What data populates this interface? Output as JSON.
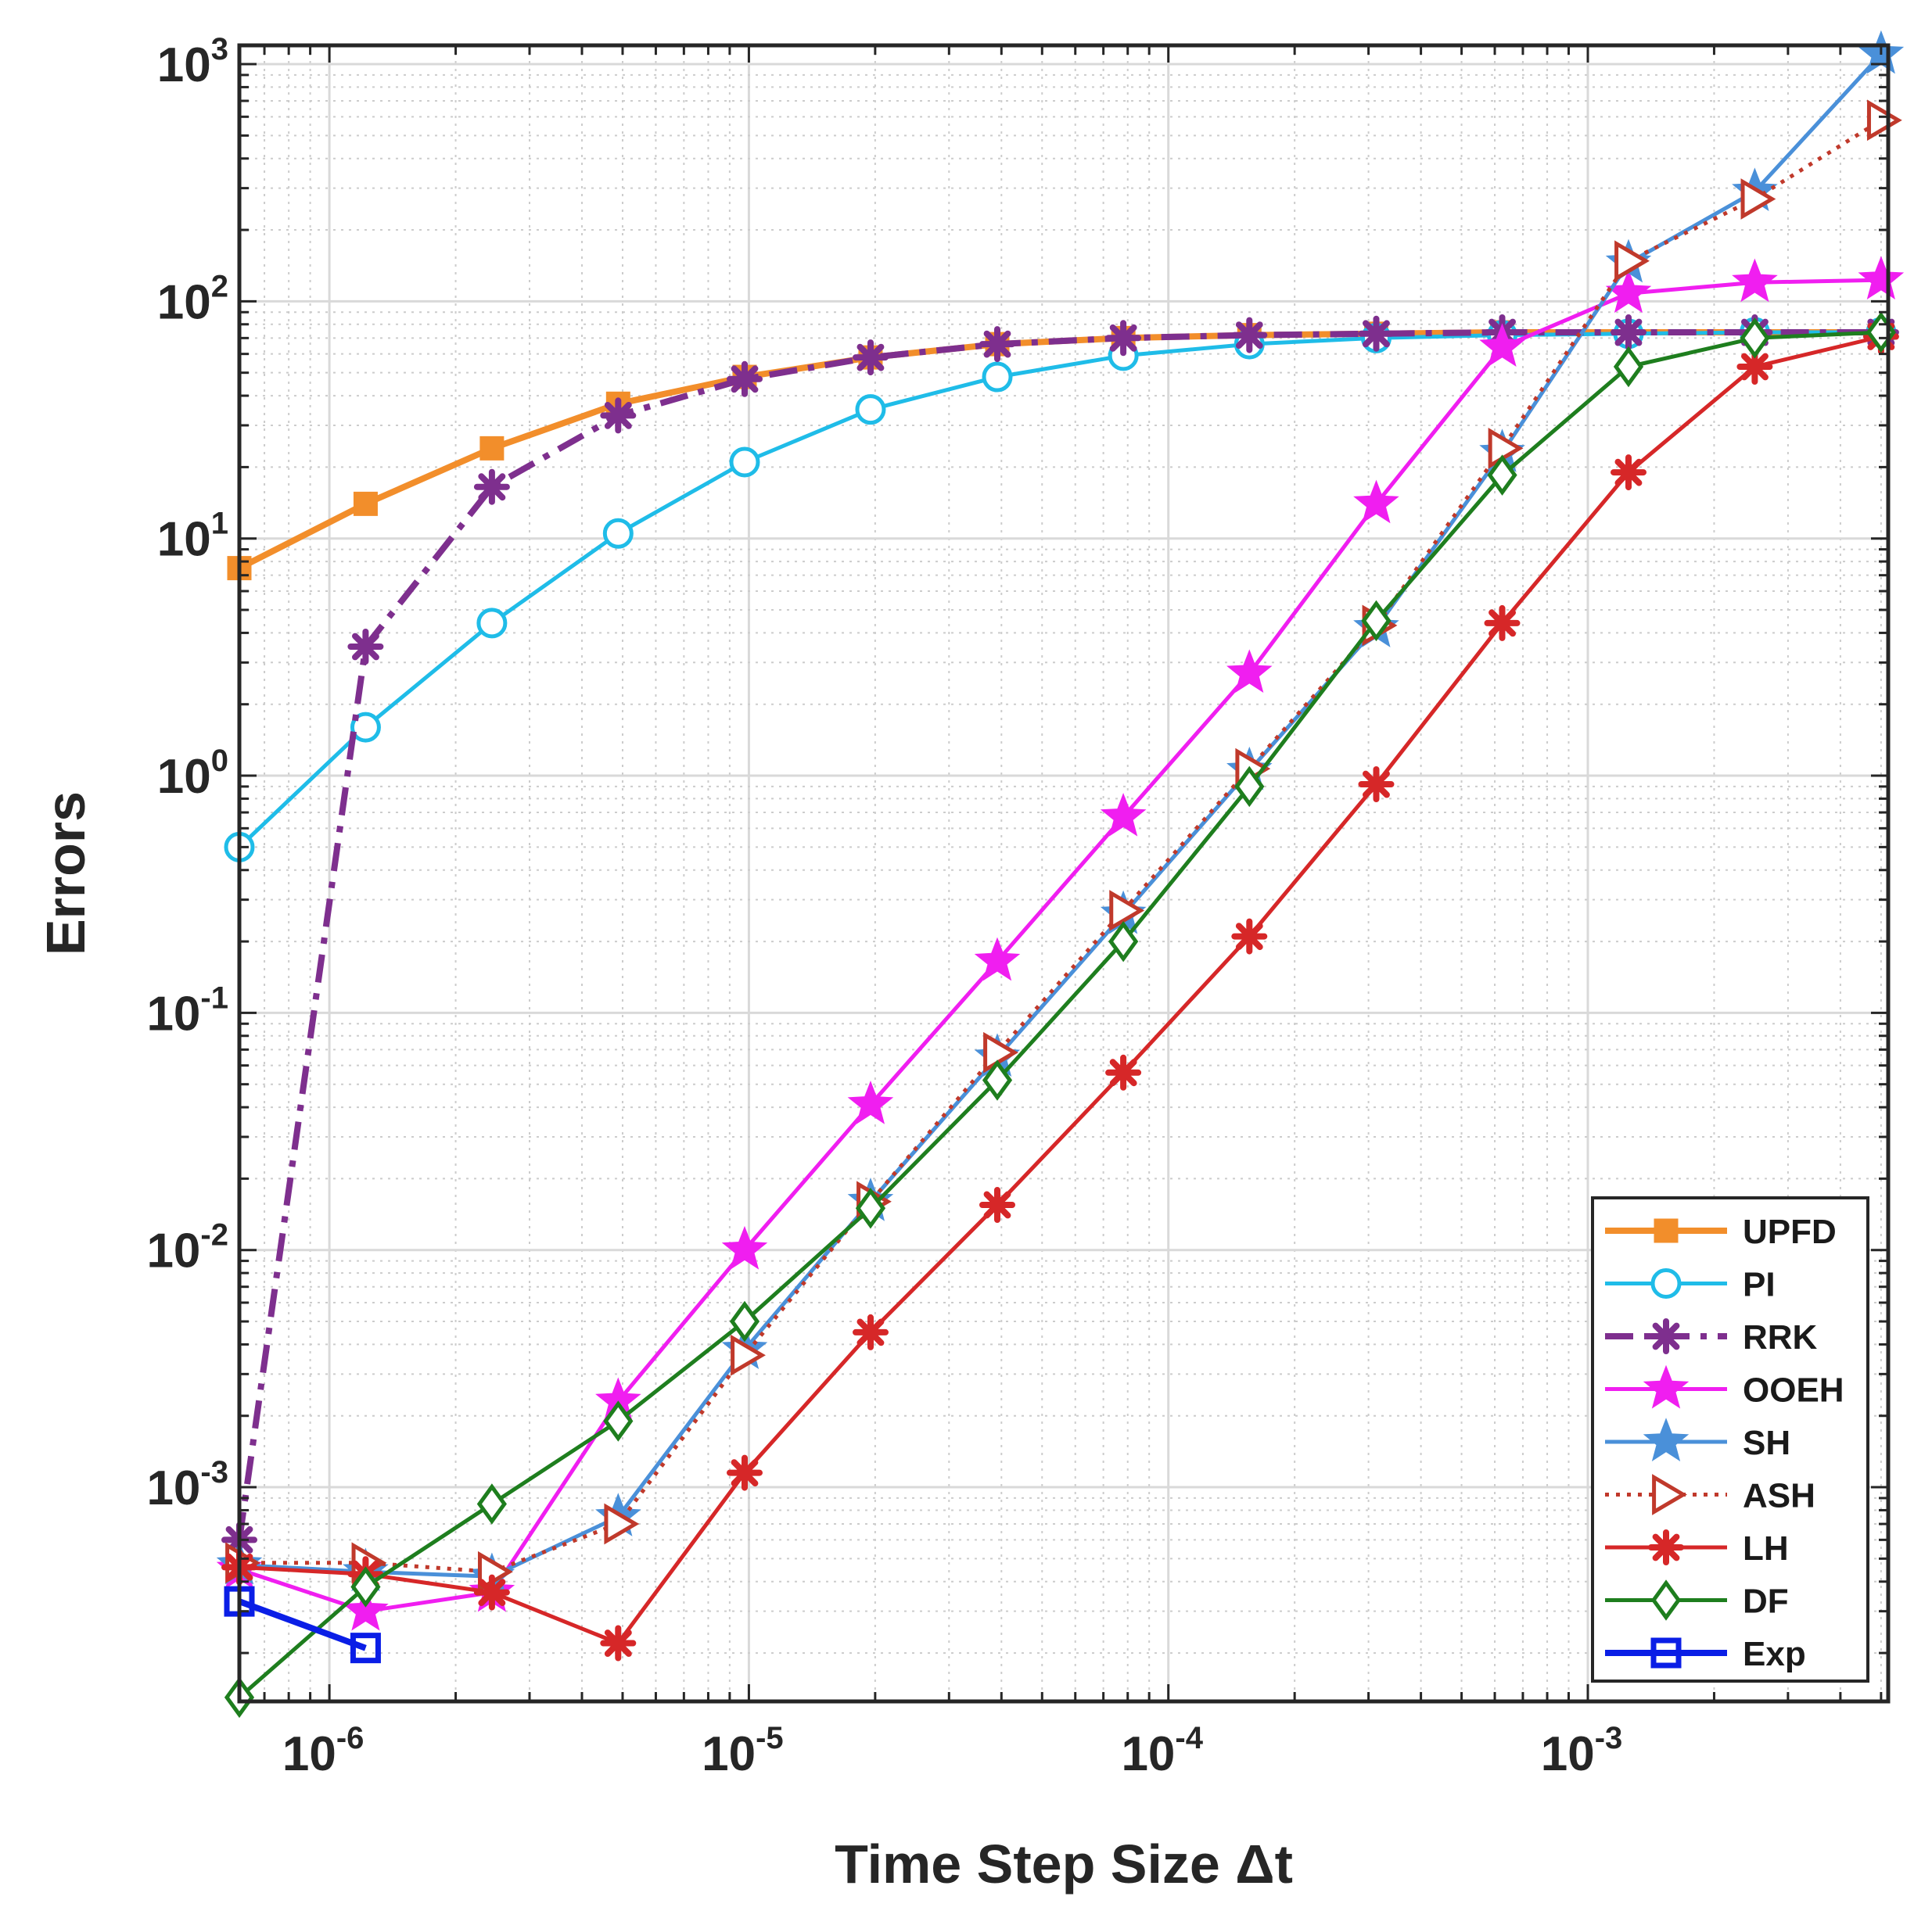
{
  "chart_data": {
    "type": "line",
    "xlabel": "Time Step Size Δt",
    "ylabel": "Errors",
    "xscale": "log",
    "yscale": "log",
    "xlim": [
      6.1e-07,
      0.0052
    ],
    "ylim": [
      0.000125,
      1200
    ],
    "grid": true,
    "minor_grid": true,
    "legend_position": "bottom-right",
    "x_ticks": [
      {
        "value": 1e-06,
        "base": "10",
        "exp": "-6"
      },
      {
        "value": 1e-05,
        "base": "10",
        "exp": "-5"
      },
      {
        "value": 0.0001,
        "base": "10",
        "exp": "-4"
      },
      {
        "value": 0.001,
        "base": "10",
        "exp": "-3"
      }
    ],
    "y_ticks": [
      {
        "value": 0.001,
        "base": "10",
        "exp": "-3"
      },
      {
        "value": 0.01,
        "base": "10",
        "exp": "-2"
      },
      {
        "value": 0.1,
        "base": "10",
        "exp": "-1"
      },
      {
        "value": 1,
        "base": "10",
        "exp": "0"
      },
      {
        "value": 10,
        "base": "10",
        "exp": "1"
      },
      {
        "value": 100,
        "base": "10",
        "exp": "2"
      },
      {
        "value": 1000,
        "base": "10",
        "exp": "3"
      }
    ],
    "series": [
      {
        "name": "UPFD",
        "color": "#F28E2B",
        "marker": "square",
        "filled": true,
        "dash": "solid",
        "x": [
          6.1e-07,
          1.22e-06,
          2.44e-06,
          4.88e-06,
          9.77e-06,
          1.95e-05,
          3.91e-05,
          7.81e-05,
          0.000156,
          0.000313,
          0.000625,
          0.00125,
          0.0025,
          0.005
        ],
        "y": [
          7.5,
          14,
          24,
          37,
          48,
          58,
          66,
          70,
          72,
          73,
          74,
          74,
          74,
          74
        ]
      },
      {
        "name": "PI",
        "color": "#1FBCE8",
        "marker": "circle",
        "filled": false,
        "dash": "solid",
        "x": [
          6.1e-07,
          1.22e-06,
          2.44e-06,
          4.88e-06,
          9.77e-06,
          1.95e-05,
          3.91e-05,
          7.81e-05,
          0.000156,
          0.000313,
          0.000625,
          0.00125,
          0.0025,
          0.005
        ],
        "y": [
          0.5,
          1.6,
          4.4,
          10.5,
          21,
          35,
          48,
          59,
          66,
          70,
          72,
          73,
          74,
          74
        ]
      },
      {
        "name": "RRK",
        "color": "#7E2F8E",
        "marker": "asterisk",
        "filled": true,
        "dash": "dashdot",
        "x": [
          6.1e-07,
          1.22e-06,
          2.44e-06,
          4.88e-06,
          9.77e-06,
          1.95e-05,
          3.91e-05,
          7.81e-05,
          0.000156,
          0.000313,
          0.000625,
          0.00125,
          0.0025,
          0.005
        ],
        "y": [
          0.0006,
          3.5,
          16.5,
          33,
          47,
          58,
          66,
          70,
          72,
          73,
          74,
          74,
          74,
          74
        ]
      },
      {
        "name": "OOEH",
        "color": "#F01EF0",
        "marker": "star",
        "filled": true,
        "dash": "solid",
        "x": [
          6.1e-07,
          1.22e-06,
          2.44e-06,
          4.88e-06,
          9.77e-06,
          1.95e-05,
          3.91e-05,
          7.81e-05,
          0.000156,
          0.000313,
          0.000625,
          0.00125,
          0.0025,
          0.005
        ],
        "y": [
          0.00045,
          0.0003,
          0.00036,
          0.0023,
          0.01,
          0.041,
          0.165,
          0.67,
          2.7,
          14,
          64,
          108,
          120,
          123
        ]
      },
      {
        "name": "SH",
        "color": "#4A90D9",
        "marker": "star",
        "filled": true,
        "dash": "solid",
        "x": [
          6.1e-07,
          1.22e-06,
          2.44e-06,
          4.88e-06,
          9.77e-06,
          1.95e-05,
          3.91e-05,
          7.81e-05,
          0.000156,
          0.000313,
          0.000625,
          0.00125,
          0.0025,
          0.005
        ],
        "y": [
          0.00047,
          0.00044,
          0.00042,
          0.00075,
          0.0038,
          0.016,
          0.065,
          0.26,
          1.05,
          4.2,
          23,
          145,
          290,
          1100
        ]
      },
      {
        "name": "ASH",
        "color": "#C0392B",
        "marker": "triangle-right",
        "filled": false,
        "dash": "dotted",
        "x": [
          6.1e-07,
          1.22e-06,
          2.44e-06,
          4.88e-06,
          9.77e-06,
          1.95e-05,
          3.91e-05,
          7.81e-05,
          0.000156,
          0.000313,
          0.000625,
          0.00125,
          0.0025,
          0.005
        ],
        "y": [
          0.00048,
          0.00048,
          0.00044,
          0.0007,
          0.0036,
          0.016,
          0.068,
          0.27,
          1.07,
          4.3,
          24,
          148,
          270,
          580
        ]
      },
      {
        "name": "LH",
        "color": "#D62728",
        "marker": "asterisk",
        "filled": true,
        "dash": "solid",
        "x": [
          6.1e-07,
          1.22e-06,
          2.44e-06,
          4.88e-06,
          9.77e-06,
          1.95e-05,
          3.91e-05,
          7.81e-05,
          0.000156,
          0.000313,
          0.000625,
          0.00125,
          0.0025,
          0.005
        ],
        "y": [
          0.00046,
          0.00043,
          0.00036,
          0.00022,
          0.00115,
          0.0045,
          0.0155,
          0.056,
          0.21,
          0.92,
          4.4,
          19,
          53,
          71
        ]
      },
      {
        "name": "DF",
        "color": "#1E7E1E",
        "marker": "diamond",
        "filled": false,
        "dash": "solid",
        "x": [
          6.1e-07,
          1.22e-06,
          2.44e-06,
          4.88e-06,
          9.77e-06,
          1.95e-05,
          3.91e-05,
          7.81e-05,
          0.000156,
          0.000313,
          0.000625,
          0.00125,
          0.0025,
          0.005
        ],
        "y": [
          0.00013,
          0.00038,
          0.00085,
          0.0019,
          0.005,
          0.015,
          0.052,
          0.2,
          0.9,
          4.5,
          18.5,
          53,
          70,
          74
        ]
      },
      {
        "name": "Exp",
        "color": "#0A1EE6",
        "marker": "square",
        "filled": false,
        "dash": "solid",
        "x": [
          6.1e-07,
          1.22e-06
        ],
        "y": [
          0.00033,
          0.00021
        ]
      }
    ]
  }
}
